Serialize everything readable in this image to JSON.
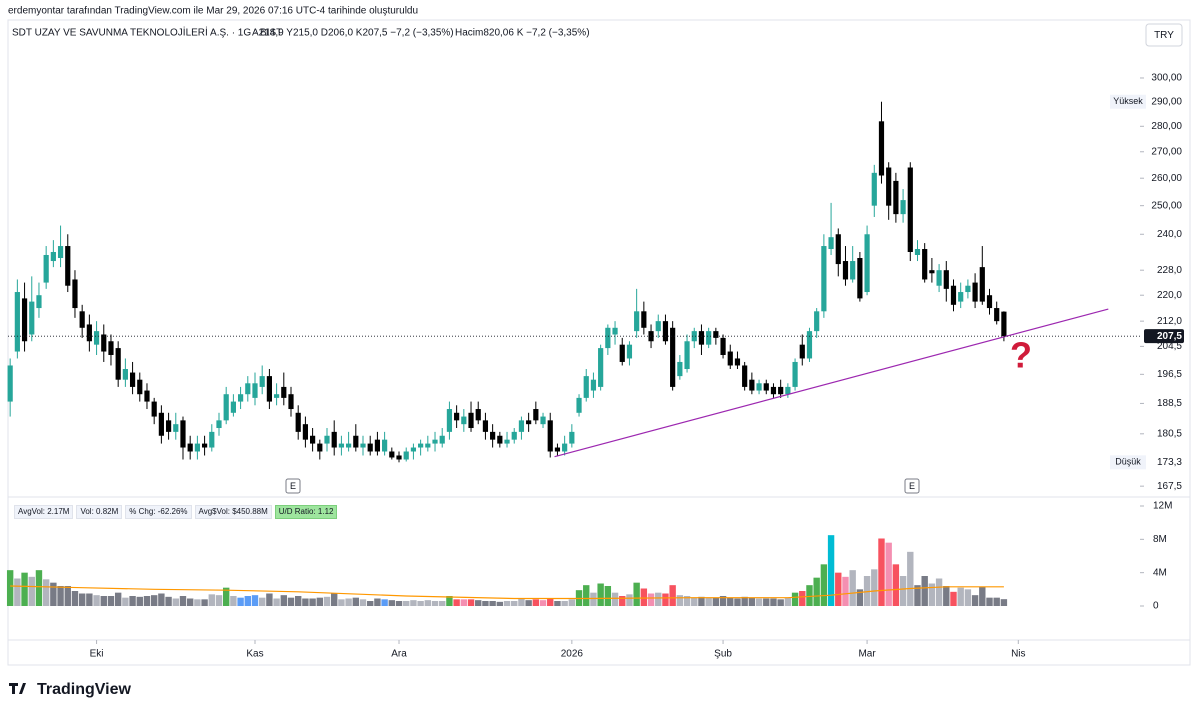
{
  "header": {
    "created": "erdemyontar tarafından TradingView.com ile Mar 29, 2026 07:16 UTC-4 tarihinde oluşturuldu",
    "symbol": "SDT UZAY VE SAVUNMA TEKNOLOJİLERİ A.Ş. · 1G · BIST",
    "ohlc": "A214,9  Y215,0  D206,0  K207,5  −7,2 (−3,35%)",
    "volume": "Hacim820,06 K  −7,2 (−3,35%)",
    "currency": "TRY"
  },
  "stats": [
    "AvgVol: 2.17M",
    "Vol: 0.82M",
    "% Chg: -62.26%",
    "Avg$Vol: $450.88M",
    "U/D Ratio: 1.12"
  ],
  "events": [
    "E",
    "E"
  ],
  "annotation": "?",
  "footer": "TradingView",
  "chart_data": {
    "type": "candlestick",
    "log_scale": true,
    "grid": false,
    "up_color": "#26a69a",
    "down_color": "#000000",
    "open": [
      189,
      203,
      219,
      208,
      216,
      224,
      231,
      232,
      236,
      225,
      215,
      211,
      205,
      208,
      206,
      204,
      195,
      197,
      195,
      192,
      189,
      186,
      184,
      181,
      184,
      178,
      176,
      178,
      177,
      182,
      184,
      186,
      189,
      191,
      190,
      193,
      196,
      190,
      193,
      191,
      186,
      183,
      180,
      178,
      178,
      181,
      177,
      177,
      180,
      177,
      178,
      179,
      176,
      176,
      175,
      174,
      176,
      177,
      177,
      178,
      178,
      181,
      186,
      183,
      186,
      187,
      184,
      181,
      180,
      178,
      179,
      181,
      184,
      187,
      183,
      184,
      177,
      176,
      178,
      186,
      190,
      192,
      193,
      204,
      208,
      205,
      201,
      209,
      215,
      209,
      209,
      212,
      210,
      196,
      198,
      206,
      209,
      205,
      209,
      207,
      203,
      201,
      199,
      195,
      192,
      194,
      193,
      193,
      191,
      193,
      205,
      201,
      209,
      215,
      235,
      240,
      231,
      225,
      232,
      221,
      250,
      282,
      264,
      259,
      247,
      264,
      233,
      235,
      228,
      223,
      228,
      223,
      218,
      221,
      224,
      229,
      220,
      216,
      214.9
    ],
    "high": [
      201,
      225,
      224,
      226,
      224,
      236,
      238,
      243,
      240,
      228,
      217,
      214,
      212,
      211,
      208,
      206,
      201,
      200,
      197,
      194,
      190,
      188,
      186,
      186,
      185,
      180,
      180,
      180,
      183,
      186,
      193,
      191,
      193,
      196,
      197,
      199,
      198,
      194,
      197,
      193,
      188,
      185,
      182,
      179,
      182,
      184,
      180,
      181,
      183,
      180,
      180,
      181,
      181,
      177,
      176,
      177,
      178,
      179,
      180,
      181,
      182,
      189,
      188,
      187,
      189,
      189,
      186,
      183,
      181,
      181,
      182,
      185,
      186,
      189,
      186,
      186,
      178,
      180,
      183,
      191,
      198,
      197,
      205,
      211,
      212,
      207,
      206,
      222,
      218,
      211,
      214,
      214,
      212,
      202,
      208,
      210,
      211,
      210,
      210,
      208,
      205,
      203,
      200,
      197,
      195,
      195,
      194,
      195,
      194,
      201,
      208,
      210,
      216,
      240,
      251,
      242,
      236,
      236,
      234,
      243,
      265,
      290,
      266,
      262,
      256,
      266,
      238,
      237,
      232,
      230,
      231,
      225,
      224,
      225,
      227,
      236,
      222,
      218,
      215
    ],
    "low": [
      185,
      201,
      203,
      206,
      213,
      222,
      229,
      229,
      221,
      213,
      207,
      203,
      202,
      200,
      199,
      193,
      193,
      191,
      189,
      187,
      183,
      178,
      179,
      179,
      174,
      174,
      174,
      175,
      176,
      180,
      183,
      185,
      187,
      189,
      188,
      191,
      187,
      188,
      188,
      185,
      179,
      177,
      176,
      174,
      176,
      175,
      175,
      176,
      176,
      175,
      175,
      175,
      175,
      174,
      173.3,
      173.5,
      174,
      175,
      176,
      176,
      177,
      179,
      182,
      181,
      181,
      183,
      179,
      177,
      177,
      177,
      178,
      179,
      181,
      183,
      182,
      174.5,
      174.8,
      175,
      177,
      185,
      189,
      190,
      192,
      202,
      205,
      199,
      199,
      207,
      208,
      204,
      207,
      205,
      192,
      195,
      197,
      204,
      202,
      204,
      205,
      201,
      198,
      198,
      192,
      191,
      191,
      191,
      190,
      190,
      190,
      192,
      199,
      200,
      207,
      213,
      233,
      226,
      223,
      224,
      218,
      220,
      246,
      258,
      245,
      244,
      244,
      231,
      231,
      224,
      224,
      221,
      218,
      215,
      216,
      219,
      216,
      217,
      214,
      211,
      206
    ],
    "close": [
      199,
      221,
      206,
      218,
      220,
      233,
      234,
      236,
      223,
      216,
      210,
      206,
      209,
      203,
      202,
      195,
      198,
      193,
      191,
      189,
      185,
      180,
      181,
      183,
      177,
      176,
      178,
      177,
      181,
      184,
      191,
      189,
      191,
      194,
      194,
      196,
      189,
      191,
      190,
      187,
      181,
      179,
      178,
      176,
      180,
      177,
      178,
      178,
      177,
      178,
      176,
      176,
      179,
      174.5,
      174,
      176,
      177,
      178,
      178,
      179,
      180,
      187,
      184,
      185,
      182,
      184,
      181,
      179,
      178,
      179,
      181,
      184,
      183,
      184,
      185,
      176,
      176,
      178,
      181,
      190,
      196,
      195,
      204,
      210,
      210,
      200,
      205,
      215,
      210,
      206,
      212,
      206,
      193,
      200,
      206,
      209,
      205,
      209,
      207,
      202,
      199,
      199,
      193,
      192,
      194,
      192,
      191,
      191,
      193,
      200,
      201,
      209,
      215,
      236,
      239,
      230,
      225,
      231,
      219,
      240,
      262,
      261,
      250,
      247,
      252,
      234,
      235,
      225,
      227,
      228,
      222,
      217,
      221,
      223,
      218,
      218,
      216,
      212,
      207.5
    ],
    "xlim": [
      -0.3,
      156.9
    ],
    "xticks": [
      {
        "value": 12,
        "label": "Eki"
      },
      {
        "value": 34,
        "label": "Kas"
      },
      {
        "value": 54,
        "label": "Ara"
      },
      {
        "value": 78,
        "label": "2026"
      },
      {
        "value": 99,
        "label": "Şub"
      },
      {
        "value": 119,
        "label": "Mar"
      },
      {
        "value": 140,
        "label": "Nis"
      }
    ],
    "ylim": [
      165.4,
      307.8
    ],
    "yticks": [
      {
        "value": 300,
        "label": "300,00"
      },
      {
        "value": 280,
        "label": "280,00"
      },
      {
        "value": 270,
        "label": "270,00"
      },
      {
        "value": 260,
        "label": "260,00"
      },
      {
        "value": 250,
        "label": "250,00"
      },
      {
        "value": 240,
        "label": "240,0"
      },
      {
        "value": 228,
        "label": "228,0"
      },
      {
        "value": 220,
        "label": "220,0"
      },
      {
        "value": 212,
        "label": "212,0"
      },
      {
        "value": 204.5,
        "label": "204,5"
      },
      {
        "value": 196.5,
        "label": "196,5"
      },
      {
        "value": 188.5,
        "label": "188,5"
      },
      {
        "value": 180.5,
        "label": "180,5"
      },
      {
        "value": 167.5,
        "label": "167,5"
      }
    ],
    "high_label": {
      "name": "Yüksek",
      "label": "290,00"
    },
    "low_label": {
      "name": "Düşük",
      "label": "173,3"
    },
    "last_price_label": "207,5",
    "trendline": {
      "color": "#9c27b0",
      "x": [
        75.6,
        152.5
      ],
      "values": [
        174.7,
        215.7
      ]
    },
    "volume": {
      "ylim": [
        0,
        12
      ],
      "yticks": [
        {
          "value": 12,
          "label": "12M"
        },
        {
          "value": 8,
          "label": "8M"
        },
        {
          "value": 4,
          "label": "4M"
        },
        0
      ],
      "values": [
        4.3,
        3.3,
        4.0,
        3.5,
        4.3,
        3.2,
        2.8,
        2.4,
        2.4,
        1.8,
        1.5,
        1.5,
        1.3,
        1.2,
        1.2,
        1.6,
        1.0,
        1.2,
        1.1,
        1.2,
        1.3,
        1.5,
        1.1,
        0.9,
        1.2,
        0.9,
        0.8,
        0.8,
        1.4,
        1.3,
        2.2,
        1.2,
        1.0,
        1.2,
        1.3,
        1.0,
        1.5,
        0.9,
        1.3,
        1.0,
        1.2,
        0.9,
        0.9,
        1.0,
        1.1,
        1.5,
        0.8,
        0.9,
        1.0,
        0.8,
        0.6,
        0.9,
        0.8,
        0.7,
        0.6,
        0.6,
        0.7,
        0.6,
        0.7,
        0.6,
        0.6,
        1.2,
        0.8,
        0.8,
        0.8,
        0.7,
        0.6,
        0.6,
        0.5,
        0.6,
        0.6,
        0.9,
        0.7,
        0.8,
        0.7,
        0.9,
        0.6,
        0.6,
        0.8,
        1.9,
        2.5,
        1.6,
        2.7,
        2.4,
        1.6,
        1.2,
        1.4,
        2.8,
        2.1,
        1.5,
        1.6,
        1.5,
        2.5,
        1.3,
        1.2,
        1.0,
        1.1,
        1.0,
        1.0,
        1.2,
        1.0,
        0.9,
        1.1,
        1.0,
        0.9,
        0.9,
        0.9,
        0.8,
        1.0,
        1.6,
        1.8,
        2.5,
        3.4,
        5.0,
        8.5,
        4.0,
        3.5,
        4.3,
        2.0,
        3.6,
        4.4,
        8.1,
        7.6,
        5.0,
        3.6,
        6.5,
        2.5,
        3.6,
        2.7,
        3.3,
        2.4,
        1.7,
        2.2,
        2.0,
        1.3,
        2.3,
        1.0,
        1.0,
        0.82
      ],
      "colors": [
        "#4caf50",
        "#b2b5be",
        "#4caf50",
        "#b2b5be",
        "#4caf50",
        "#b2b5be",
        "#787b86",
        "#787b86",
        "#787b86",
        "#787b86",
        "#787b86",
        "#787b86",
        "#b2b5be",
        "#787b86",
        "#787b86",
        "#787b86",
        "#b2b5be",
        "#787b86",
        "#787b86",
        "#787b86",
        "#787b86",
        "#787b86",
        "#787b86",
        "#b2b5be",
        "#787b86",
        "#787b86",
        "#b2b5be",
        "#787b86",
        "#b2b5be",
        "#b2b5be",
        "#4caf50",
        "#b2b5be",
        "#5b9cf6",
        "#5b9cf6",
        "#5b9cf6",
        "#b2b5be",
        "#787b86",
        "#b2b5be",
        "#787b86",
        "#787b86",
        "#787b86",
        "#787b86",
        "#787b86",
        "#787b86",
        "#b2b5be",
        "#787b86",
        "#b2b5be",
        "#b2b5be",
        "#787b86",
        "#b2b5be",
        "#787b86",
        "#787b86",
        "#5b9cf6",
        "#787b86",
        "#787b86",
        "#b2b5be",
        "#b2b5be",
        "#b2b5be",
        "#b2b5be",
        "#b2b5be",
        "#b2b5be",
        "#4caf50",
        "#f7525f",
        "#f48fb1",
        "#f7525f",
        "#787b86",
        "#787b86",
        "#787b86",
        "#787b86",
        "#b2b5be",
        "#b2b5be",
        "#b2b5be",
        "#787b86",
        "#f7525f",
        "#f48fb1",
        "#f7525f",
        "#787b86",
        "#b2b5be",
        "#b2b5be",
        "#4caf50",
        "#4caf50",
        "#b2b5be",
        "#4caf50",
        "#4caf50",
        "#b2b5be",
        "#f7525f",
        "#b2b5be",
        "#4caf50",
        "#f7525f",
        "#f48fb1",
        "#b2b5be",
        "#f7525f",
        "#f7525f",
        "#b2b5be",
        "#b2b5be",
        "#b2b5be",
        "#787b86",
        "#b2b5be",
        "#787b86",
        "#787b86",
        "#787b86",
        "#787b86",
        "#787b86",
        "#787b86",
        "#b2b5be",
        "#787b86",
        "#787b86",
        "#787b86",
        "#b2b5be",
        "#4caf50",
        "#f7525f",
        "#4caf50",
        "#4caf50",
        "#4caf50",
        "#00bcd4",
        "#f7525f",
        "#f48fb1",
        "#b2b5be",
        "#787b86",
        "#b2b5be",
        "#b2b5be",
        "#f7525f",
        "#f48fb1",
        "#f7525f",
        "#b2b5be",
        "#b2b5be",
        "#787b86",
        "#787b86",
        "#b2b5be",
        "#b2b5be",
        "#787b86",
        "#f7525f",
        "#b2b5be",
        "#b2b5be",
        "#787b86",
        "#787b86",
        "#787b86",
        "#787b86",
        "#787b86"
      ],
      "avg_line": {
        "color": "#ff9800",
        "x": [
          0,
          10,
          20,
          30,
          40,
          55,
          70,
          80,
          95,
          108,
          114,
          120,
          125,
          130,
          138
        ],
        "values": [
          2.4,
          2.2,
          2.0,
          1.9,
          1.7,
          1.2,
          0.9,
          0.9,
          1.0,
          1.0,
          1.3,
          1.8,
          2.1,
          2.3,
          2.3
        ]
      }
    }
  }
}
